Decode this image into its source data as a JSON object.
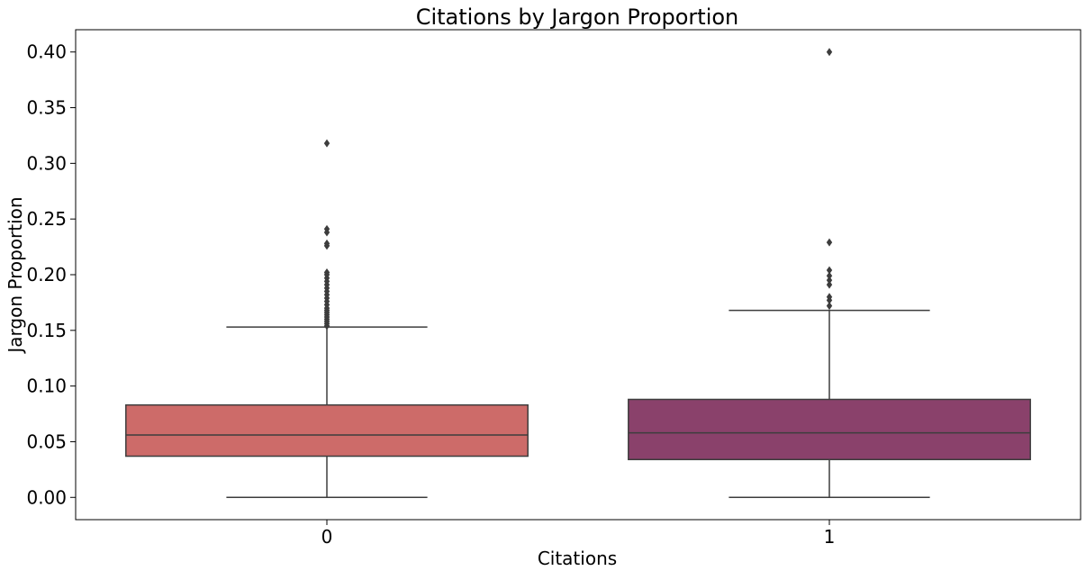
{
  "chart_data": {
    "type": "box",
    "title": "Citations by Jargon Proportion",
    "xlabel": "Citations",
    "ylabel": "Jargon Proportion",
    "categories": [
      "0",
      "1"
    ],
    "yticks": [
      "0.00",
      "0.05",
      "0.10",
      "0.15",
      "0.20",
      "0.25",
      "0.30",
      "0.35",
      "0.40"
    ],
    "ylim": [
      -0.02,
      0.42
    ],
    "grid": false,
    "boxes": [
      {
        "category": "0",
        "color": "#cd6b69",
        "min": 0.0,
        "q1": 0.037,
        "median": 0.056,
        "q3": 0.083,
        "max": 0.153,
        "outliers": [
          0.154,
          0.156,
          0.158,
          0.16,
          0.162,
          0.164,
          0.166,
          0.168,
          0.17,
          0.173,
          0.176,
          0.179,
          0.182,
          0.185,
          0.188,
          0.191,
          0.194,
          0.197,
          0.2,
          0.202,
          0.226,
          0.228,
          0.238,
          0.241,
          0.318
        ]
      },
      {
        "category": "1",
        "color": "#8a416b",
        "min": 0.0,
        "q1": 0.034,
        "median": 0.058,
        "q3": 0.088,
        "max": 0.168,
        "outliers": [
          0.172,
          0.177,
          0.18,
          0.191,
          0.195,
          0.199,
          0.204,
          0.229,
          0.4
        ]
      }
    ]
  }
}
